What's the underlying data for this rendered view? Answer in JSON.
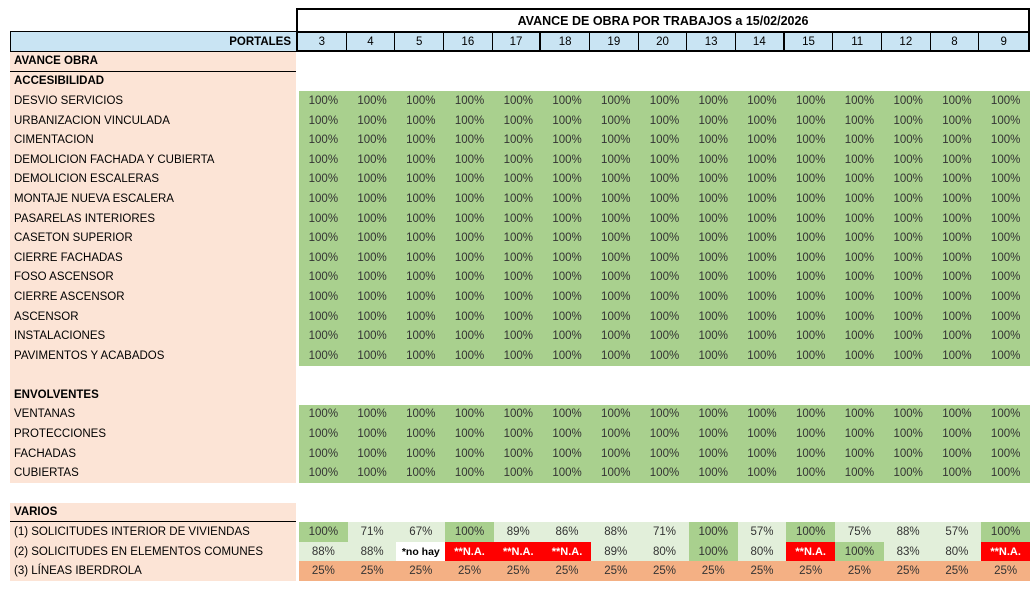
{
  "title": "AVANCE DE OBRA POR TRABAJOS a 15/02/2026",
  "portales_label": "PORTALES",
  "columns": [
    "3",
    "4",
    "5",
    "16",
    "17",
    "18",
    "19",
    "20",
    "13",
    "14",
    "15",
    "11",
    "12",
    "8",
    "9"
  ],
  "group_breaks_after_index": [
    4,
    9
  ],
  "colors": {
    "label_bg": "#fce4d6",
    "header_bg": "#c9e4f3",
    "green_full": "#a9d08e",
    "green_light": "#e2efda",
    "red": "#ff0000",
    "orange": "#f4b084",
    "border": "#000000"
  },
  "style_legend": {
    "f": "full-green",
    "l": "light-green",
    "w": "white-bold",
    "r": "red-na",
    "o": "orange"
  },
  "rows": [
    {
      "type": "section",
      "label": "AVANCE OBRA",
      "underline": true
    },
    {
      "type": "section",
      "label": "ACCESIBILIDAD"
    },
    {
      "type": "data",
      "label": "DESVIO SERVICIOS",
      "style": "f",
      "values": [
        "100%",
        "100%",
        "100%",
        "100%",
        "100%",
        "100%",
        "100%",
        "100%",
        "100%",
        "100%",
        "100%",
        "100%",
        "100%",
        "100%",
        "100%"
      ]
    },
    {
      "type": "data",
      "label": "URBANIZACION VINCULADA",
      "style": "f",
      "values": [
        "100%",
        "100%",
        "100%",
        "100%",
        "100%",
        "100%",
        "100%",
        "100%",
        "100%",
        "100%",
        "100%",
        "100%",
        "100%",
        "100%",
        "100%"
      ]
    },
    {
      "type": "data",
      "label": "CIMENTACION",
      "style": "f",
      "values": [
        "100%",
        "100%",
        "100%",
        "100%",
        "100%",
        "100%",
        "100%",
        "100%",
        "100%",
        "100%",
        "100%",
        "100%",
        "100%",
        "100%",
        "100%"
      ]
    },
    {
      "type": "data",
      "label": "DEMOLICION FACHADA Y CUBIERTA",
      "style": "f",
      "values": [
        "100%",
        "100%",
        "100%",
        "100%",
        "100%",
        "100%",
        "100%",
        "100%",
        "100%",
        "100%",
        "100%",
        "100%",
        "100%",
        "100%",
        "100%"
      ]
    },
    {
      "type": "data",
      "label": "DEMOLICION ESCALERAS",
      "style": "f",
      "values": [
        "100%",
        "100%",
        "100%",
        "100%",
        "100%",
        "100%",
        "100%",
        "100%",
        "100%",
        "100%",
        "100%",
        "100%",
        "100%",
        "100%",
        "100%"
      ]
    },
    {
      "type": "data",
      "label": "MONTAJE NUEVA ESCALERA",
      "style": "f",
      "values": [
        "100%",
        "100%",
        "100%",
        "100%",
        "100%",
        "100%",
        "100%",
        "100%",
        "100%",
        "100%",
        "100%",
        "100%",
        "100%",
        "100%",
        "100%"
      ]
    },
    {
      "type": "data",
      "label": "PASARELAS INTERIORES",
      "style": "f",
      "values": [
        "100%",
        "100%",
        "100%",
        "100%",
        "100%",
        "100%",
        "100%",
        "100%",
        "100%",
        "100%",
        "100%",
        "100%",
        "100%",
        "100%",
        "100%"
      ]
    },
    {
      "type": "data",
      "label": "CASETON SUPERIOR",
      "style": "f",
      "values": [
        "100%",
        "100%",
        "100%",
        "100%",
        "100%",
        "100%",
        "100%",
        "100%",
        "100%",
        "100%",
        "100%",
        "100%",
        "100%",
        "100%",
        "100%"
      ]
    },
    {
      "type": "data",
      "label": "CIERRE FACHADAS",
      "style": "f",
      "values": [
        "100%",
        "100%",
        "100%",
        "100%",
        "100%",
        "100%",
        "100%",
        "100%",
        "100%",
        "100%",
        "100%",
        "100%",
        "100%",
        "100%",
        "100%"
      ]
    },
    {
      "type": "data",
      "label": "FOSO ASCENSOR",
      "style": "f",
      "values": [
        "100%",
        "100%",
        "100%",
        "100%",
        "100%",
        "100%",
        "100%",
        "100%",
        "100%",
        "100%",
        "100%",
        "100%",
        "100%",
        "100%",
        "100%"
      ]
    },
    {
      "type": "data",
      "label": "CIERRE ASCENSOR",
      "style": "f",
      "values": [
        "100%",
        "100%",
        "100%",
        "100%",
        "100%",
        "100%",
        "100%",
        "100%",
        "100%",
        "100%",
        "100%",
        "100%",
        "100%",
        "100%",
        "100%"
      ]
    },
    {
      "type": "data",
      "label": "ASCENSOR",
      "style": "f",
      "values": [
        "100%",
        "100%",
        "100%",
        "100%",
        "100%",
        "100%",
        "100%",
        "100%",
        "100%",
        "100%",
        "100%",
        "100%",
        "100%",
        "100%",
        "100%"
      ]
    },
    {
      "type": "data",
      "label": "INSTALACIONES",
      "style": "f",
      "values": [
        "100%",
        "100%",
        "100%",
        "100%",
        "100%",
        "100%",
        "100%",
        "100%",
        "100%",
        "100%",
        "100%",
        "100%",
        "100%",
        "100%",
        "100%"
      ]
    },
    {
      "type": "data",
      "label": "PAVIMENTOS Y ACABADOS",
      "style": "f",
      "values": [
        "100%",
        "100%",
        "100%",
        "100%",
        "100%",
        "100%",
        "100%",
        "100%",
        "100%",
        "100%",
        "100%",
        "100%",
        "100%",
        "100%",
        "100%"
      ]
    },
    {
      "type": "blank"
    },
    {
      "type": "section",
      "label": "ENVOLVENTES"
    },
    {
      "type": "data",
      "label": "VENTANAS",
      "style": "f",
      "values": [
        "100%",
        "100%",
        "100%",
        "100%",
        "100%",
        "100%",
        "100%",
        "100%",
        "100%",
        "100%",
        "100%",
        "100%",
        "100%",
        "100%",
        "100%"
      ]
    },
    {
      "type": "data",
      "label": "PROTECCIONES",
      "style": "f",
      "values": [
        "100%",
        "100%",
        "100%",
        "100%",
        "100%",
        "100%",
        "100%",
        "100%",
        "100%",
        "100%",
        "100%",
        "100%",
        "100%",
        "100%",
        "100%"
      ]
    },
    {
      "type": "data",
      "label": "FACHADAS",
      "style": "f",
      "values": [
        "100%",
        "100%",
        "100%",
        "100%",
        "100%",
        "100%",
        "100%",
        "100%",
        "100%",
        "100%",
        "100%",
        "100%",
        "100%",
        "100%",
        "100%"
      ]
    },
    {
      "type": "data",
      "label": "CUBIERTAS",
      "style": "f",
      "values": [
        "100%",
        "100%",
        "100%",
        "100%",
        "100%",
        "100%",
        "100%",
        "100%",
        "100%",
        "100%",
        "100%",
        "100%",
        "100%",
        "100%",
        "100%"
      ]
    },
    {
      "type": "gap"
    },
    {
      "type": "section",
      "label": "VARIOS",
      "underline": true
    },
    {
      "type": "data",
      "label": "(1) SOLICITUDES INTERIOR DE VIVIENDAS",
      "values": [
        "100%",
        "71%",
        "67%",
        "100%",
        "89%",
        "86%",
        "88%",
        "71%",
        "100%",
        "57%",
        "100%",
        "75%",
        "88%",
        "57%",
        "100%"
      ],
      "styles": [
        "f",
        "l",
        "l",
        "f",
        "l",
        "l",
        "l",
        "l",
        "f",
        "l",
        "f",
        "l",
        "l",
        "l",
        "f"
      ]
    },
    {
      "type": "data",
      "label": "(2) SOLICITUDES EN ELEMENTOS COMUNES",
      "values": [
        "88%",
        "88%",
        "*no hay",
        "**N.A.",
        "**N.A.",
        "**N.A.",
        "89%",
        "80%",
        "100%",
        "80%",
        "**N.A.",
        "100%",
        "83%",
        "80%",
        "**N.A."
      ],
      "styles": [
        "l",
        "l",
        "w",
        "r",
        "r",
        "r",
        "l",
        "l",
        "f",
        "l",
        "r",
        "f",
        "l",
        "l",
        "r"
      ]
    },
    {
      "type": "data",
      "label": "(3) LÍNEAS IBERDROLA",
      "style": "o",
      "values": [
        "25%",
        "25%",
        "25%",
        "25%",
        "25%",
        "25%",
        "25%",
        "25%",
        "25%",
        "25%",
        "25%",
        "25%",
        "25%",
        "25%",
        "25%"
      ]
    }
  ]
}
